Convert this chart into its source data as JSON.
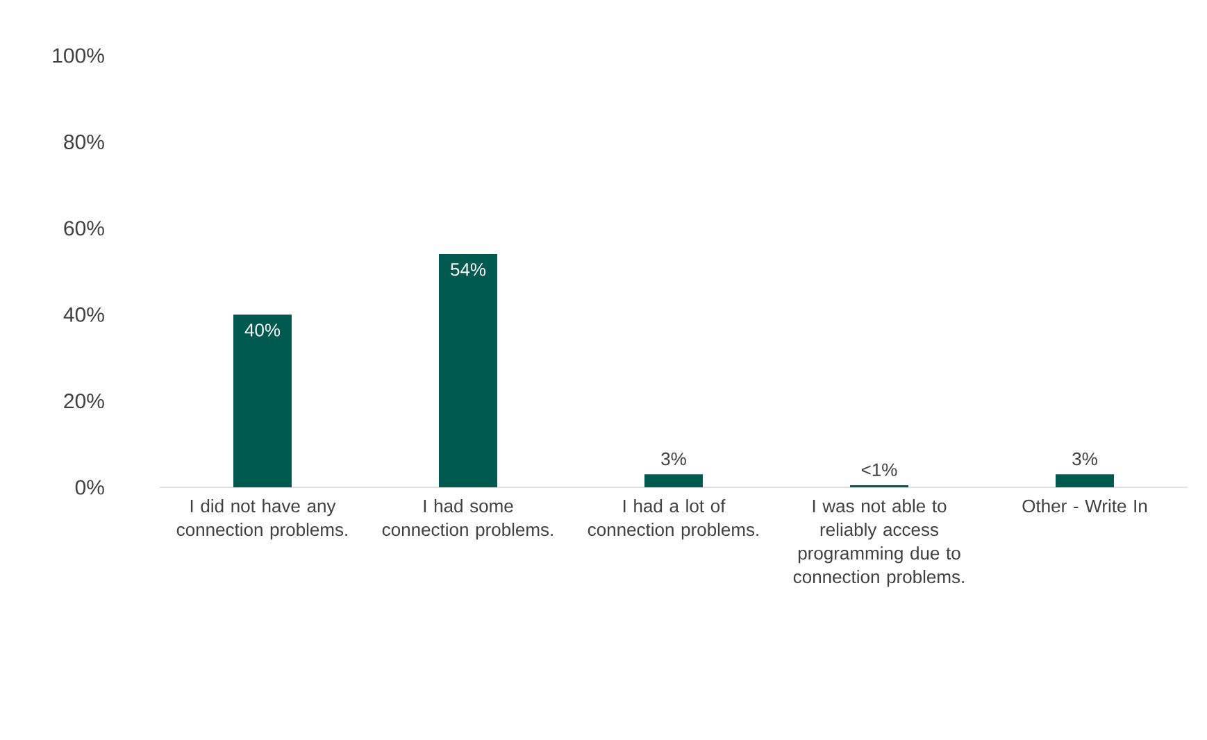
{
  "chart_data": {
    "type": "bar",
    "categories": [
      "I did not have any connection problems.",
      "I had some connection problems.",
      "I had a lot of connection problems.",
      "I was not able to reliably access programming due to connection problems.",
      "Other - Write In"
    ],
    "values": [
      40,
      54,
      3,
      0.5,
      3
    ],
    "value_labels": [
      "40%",
      "54%",
      "3%",
      "<1%",
      "3%"
    ],
    "color": "#005a50",
    "ylim": [
      0,
      100
    ],
    "yticks": [
      {
        "value": 0,
        "label": "0%"
      },
      {
        "value": 20,
        "label": "20%"
      },
      {
        "value": 40,
        "label": "40%"
      },
      {
        "value": 60,
        "label": "60%"
      },
      {
        "value": 80,
        "label": "80%"
      },
      {
        "value": 100,
        "label": "100%"
      }
    ]
  }
}
